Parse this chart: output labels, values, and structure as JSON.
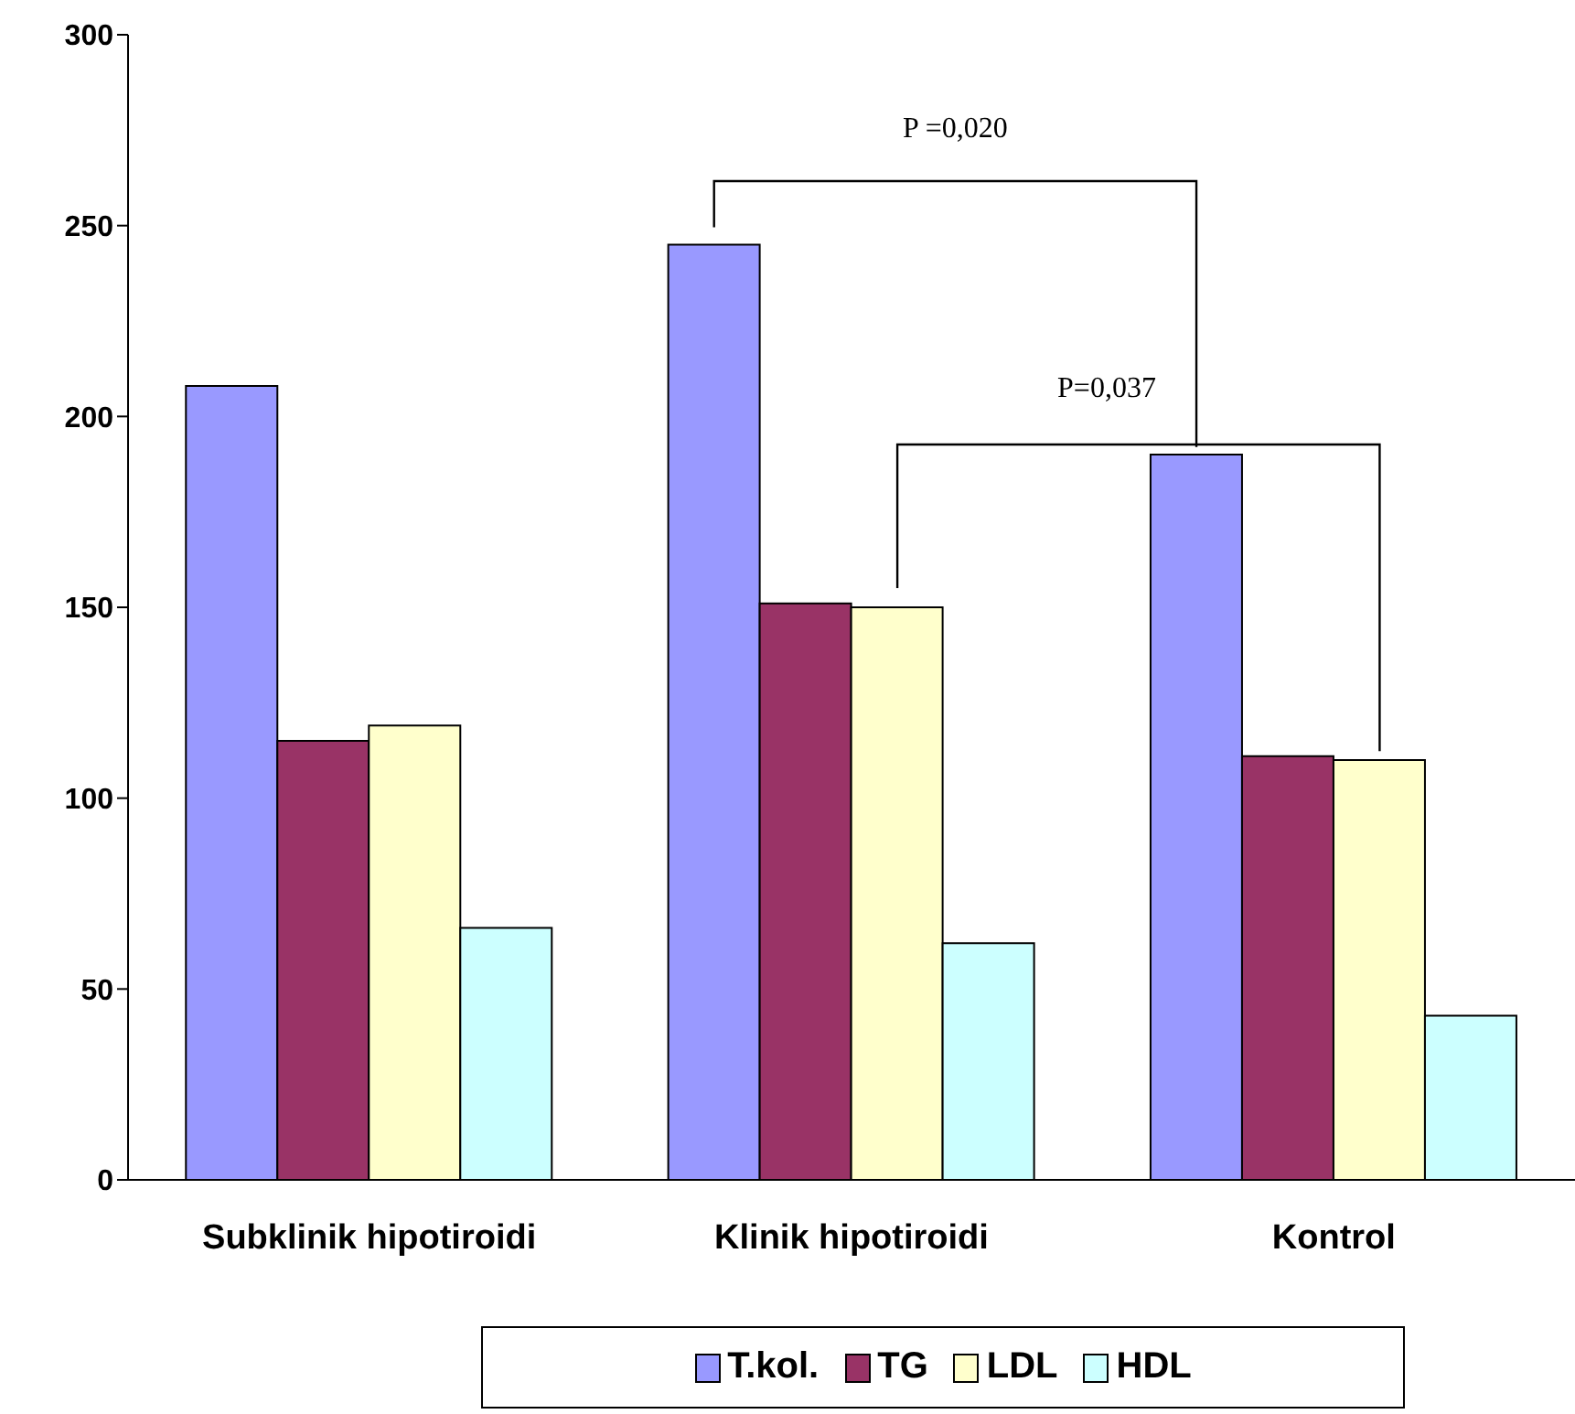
{
  "chart_data": {
    "type": "bar",
    "categories": [
      "Subklinik hipotiroidi",
      "Klinik hipotiroidi",
      "Kontrol"
    ],
    "series": [
      {
        "name": "T.kol.",
        "color": "#9999ff",
        "values": [
          208,
          245,
          190
        ]
      },
      {
        "name": "TG",
        "color": "#993366",
        "values": [
          115,
          151,
          111
        ]
      },
      {
        "name": "LDL",
        "color": "#ffffcc",
        "values": [
          119,
          150,
          110
        ]
      },
      {
        "name": "HDL",
        "color": "#ccffff",
        "values": [
          66,
          62,
          43
        ]
      }
    ],
    "ylim": [
      0,
      300
    ],
    "yticks": [
      0,
      50,
      100,
      150,
      200,
      250,
      300
    ],
    "legend": "bottom",
    "annotations": [
      "P =0,020",
      "P=0,037"
    ]
  }
}
